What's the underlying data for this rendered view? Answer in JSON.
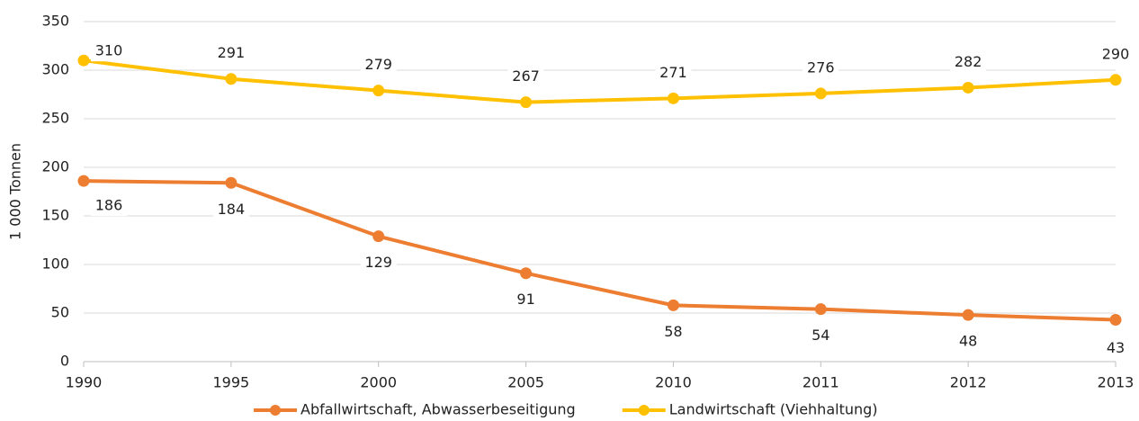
{
  "chart_data": {
    "type": "line",
    "y_label": "1 000 Tonnen",
    "categories": [
      "1990",
      "1995",
      "2000",
      "2005",
      "2010",
      "2011",
      "2012",
      "2013"
    ],
    "series": [
      {
        "name": "Abfallwirtschaft, Abwasserbeseitigung",
        "color": "#ed7d31",
        "values": [
          186,
          184,
          129,
          91,
          58,
          54,
          48,
          43
        ]
      },
      {
        "name": "Landwirtschaft (Viehhaltung)",
        "color": "#ffc000",
        "values": [
          310,
          291,
          279,
          267,
          271,
          276,
          282,
          290
        ]
      }
    ],
    "ylim": [
      0,
      350
    ],
    "yticks": [
      0,
      50,
      100,
      150,
      200,
      250,
      300,
      350
    ],
    "grid": true,
    "legend": "bottom"
  }
}
